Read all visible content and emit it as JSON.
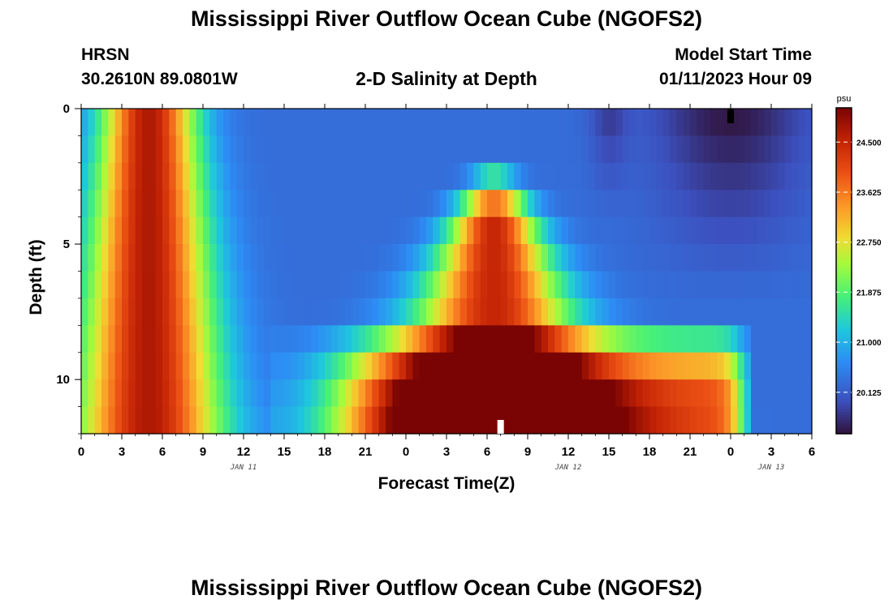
{
  "header": {
    "title": "Mississippi River Outflow Ocean Cube (NGOFS2)",
    "station": "HRSN",
    "coords": "30.2610N  89.0801W",
    "subtitle": "2-D Salinity at Depth",
    "start_label": "Model Start Time",
    "start_time": "01/11/2023 Hour 09"
  },
  "footer": {
    "title": "Mississippi River Outflow Ocean Cube (NGOFS2)"
  },
  "chart_data": {
    "type": "heatmap",
    "title": "2-D Salinity at Depth",
    "xlabel": "Forecast Time(Z)",
    "ylabel": "Depth (ft)",
    "x_range_hours": [
      0,
      54
    ],
    "y_range_ft": [
      0,
      12
    ],
    "x_ticks": [
      "0",
      "3",
      "6",
      "9",
      "12",
      "15",
      "18",
      "21",
      "0",
      "3",
      "6",
      "9",
      "12",
      "15",
      "18",
      "21",
      "0",
      "3",
      "6"
    ],
    "x_tick_hours": [
      0,
      3,
      6,
      9,
      12,
      15,
      18,
      21,
      24,
      27,
      30,
      33,
      36,
      39,
      42,
      45,
      48,
      51,
      54
    ],
    "date_labels": [
      {
        "text": "JAN 11",
        "hour": 12
      },
      {
        "text": "JAN 12",
        "hour": 36
      },
      {
        "text": "JAN 13",
        "hour": 51
      }
    ],
    "y_ticks": [
      "0",
      "5",
      "10"
    ],
    "y_tick_values": [
      0,
      5,
      10
    ],
    "colorbar": {
      "unit": "psu",
      "min": 19.4,
      "max": 25.1,
      "tick_labels": [
        "24.500",
        "23.625",
        "22.750",
        "21.875",
        "21.000",
        "20.125"
      ],
      "tick_values": [
        24.5,
        23.625,
        22.75,
        21.875,
        21.0,
        20.125
      ]
    }
  }
}
